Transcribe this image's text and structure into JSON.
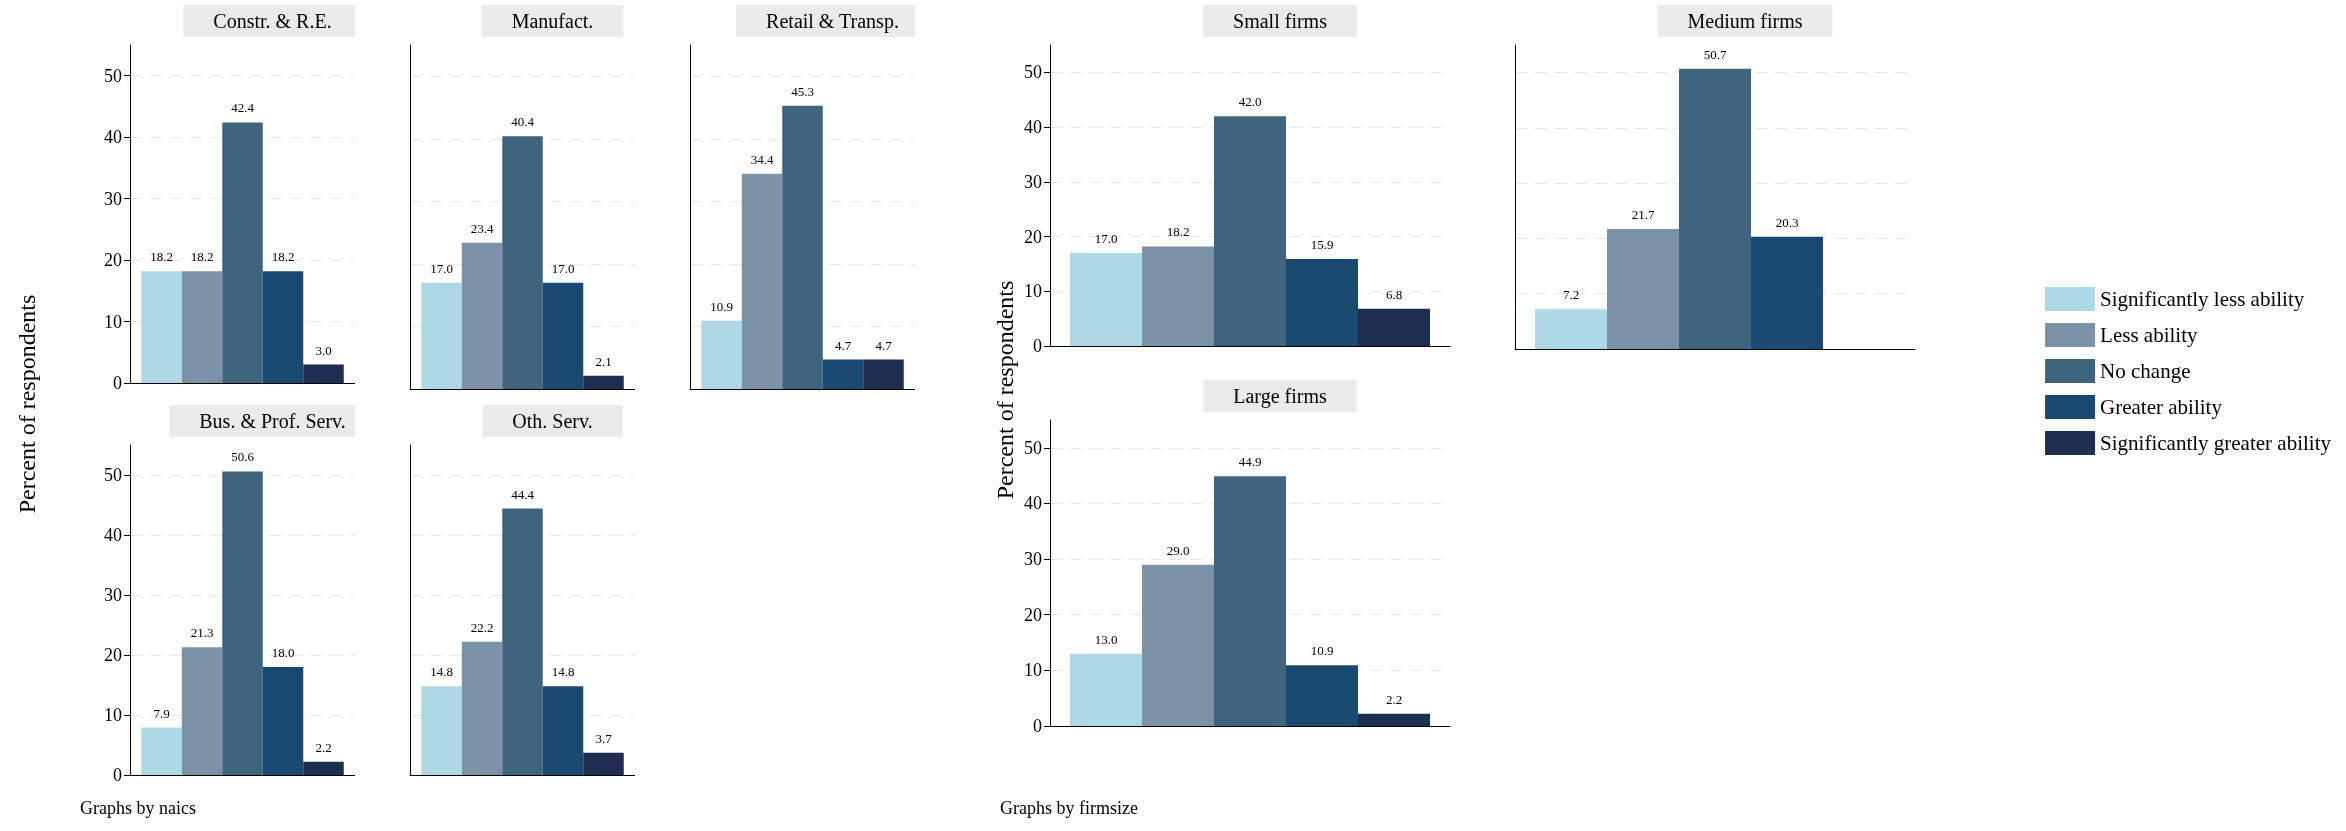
{
  "chart_data": [
    {
      "type": "bar",
      "title": "Constr. & R.E.",
      "ylabel": "Percent of respondents",
      "categories": [
        null
      ],
      "ylim": [
        0,
        55
      ],
      "yticks": [
        0,
        10,
        20,
        30,
        40,
        50
      ],
      "grid": "y",
      "legend": false,
      "series": [
        {
          "color": "#add8e6",
          "values": [
            18.2
          ],
          "value_labels": [
            "18.2"
          ]
        },
        {
          "color": "#7b92a9",
          "values": [
            18.2
          ],
          "value_labels": [
            "18.2"
          ]
        },
        {
          "color": "#3e647e",
          "values": [
            42.4
          ],
          "value_labels": [
            "42.4"
          ]
        },
        {
          "color": "#1b4a70",
          "values": [
            18.2
          ],
          "value_labels": [
            "18.2"
          ]
        },
        {
          "color": "#1f2d50",
          "values": [
            3.0
          ],
          "value_labels": [
            "3.0"
          ]
        }
      ]
    },
    {
      "type": "bar",
      "title": "Manufact.",
      "categories": [
        null
      ],
      "grid": "y",
      "legend": false,
      "tick_labels": false,
      "series": [
        {
          "color": "#add8e6",
          "values": [
            17.0
          ],
          "value_labels": [
            "17.0"
          ]
        },
        {
          "color": "#7b92a9",
          "values": [
            23.4
          ],
          "value_labels": [
            "23.4"
          ]
        },
        {
          "color": "#3e647e",
          "values": [
            40.4
          ],
          "value_labels": [
            "40.4"
          ]
        },
        {
          "color": "#1b4a70",
          "values": [
            17.0
          ],
          "value_labels": [
            "17.0"
          ]
        },
        {
          "color": "#1f2d50",
          "values": [
            2.1
          ],
          "value_labels": [
            "2.1"
          ]
        }
      ]
    },
    {
      "type": "bar",
      "title": "Retail & Transp.",
      "categories": [
        null
      ],
      "grid": "y",
      "legend": false,
      "tick_labels": false,
      "series": [
        {
          "color": "#add8e6",
          "values": [
            10.9
          ],
          "value_labels": [
            "10.9"
          ]
        },
        {
          "color": "#7b92a9",
          "values": [
            34.4
          ],
          "value_labels": [
            "34.4"
          ]
        },
        {
          "color": "#3e647e",
          "values": [
            45.3
          ],
          "value_labels": [
            "45.3"
          ]
        },
        {
          "color": "#1b4a70",
          "values": [
            4.7
          ],
          "value_labels": [
            "4.7"
          ]
        },
        {
          "color": "#1f2d50",
          "values": [
            4.7
          ],
          "value_labels": [
            "4.7"
          ]
        }
      ]
    },
    {
      "type": "bar",
      "title": "Small firms",
      "ylabel": "Percent of respondents",
      "categories": [
        null
      ],
      "ylim": [
        0,
        55
      ],
      "yticks": [
        0,
        10,
        20,
        30,
        40,
        50
      ],
      "grid": "y",
      "legend": false,
      "series": [
        {
          "color": "#add8e6",
          "values": [
            17.0
          ],
          "value_labels": [
            "17.0"
          ]
        },
        {
          "color": "#7b92a9",
          "values": [
            18.2
          ],
          "value_labels": [
            "18.2"
          ]
        },
        {
          "color": "#3e647e",
          "values": [
            42.0
          ],
          "value_labels": [
            "42.0"
          ]
        },
        {
          "color": "#1b4a70",
          "values": [
            15.9
          ],
          "value_labels": [
            "15.9"
          ]
        },
        {
          "color": "#1f2d50",
          "values": [
            6.8
          ],
          "value_labels": [
            "6.8"
          ]
        }
      ]
    },
    {
      "type": "bar",
      "title": "Medium firms",
      "categories": [
        null
      ],
      "grid": "y",
      "legend": "right",
      "tick_labels": false,
      "series": [
        {
          "name": "Significantly less ability",
          "color": "#add8e6",
          "values": [
            7.2
          ],
          "value_labels": [
            "7.2"
          ]
        },
        {
          "name": "Less ability",
          "color": "#7b92a9",
          "values": [
            21.7
          ],
          "value_labels": [
            "21.7"
          ]
        },
        {
          "name": "No change",
          "color": "#3e647e",
          "values": [
            50.7
          ],
          "value_labels": [
            "50.7"
          ]
        },
        {
          "name": "Greater ability",
          "color": "#1b4a70",
          "values": [
            20.3
          ],
          "value_labels": [
            "20.3"
          ]
        },
        {
          "name": "Significantly greater ability",
          "color": "#1f2d50",
          "values": [
            null
          ],
          "value_labels": [
            null
          ]
        }
      ]
    },
    {
      "type": "bar",
      "title": "Bus. & Prof. Serv.",
      "categories": [
        null
      ],
      "ylim": [
        0,
        55
      ],
      "yticks": [
        0,
        10,
        20,
        30,
        40,
        50
      ],
      "grid": "y",
      "legend": false,
      "annotations": [
        "Graphs by naics"
      ],
      "series": [
        {
          "color": "#add8e6",
          "values": [
            7.9
          ],
          "value_labels": [
            "7.9"
          ]
        },
        {
          "color": "#7b92a9",
          "values": [
            21.3
          ],
          "value_labels": [
            "21.3"
          ]
        },
        {
          "color": "#3e647e",
          "values": [
            50.6
          ],
          "value_labels": [
            "50.6"
          ]
        },
        {
          "color": "#1b4a70",
          "values": [
            18.0
          ],
          "value_labels": [
            "18.0"
          ]
        },
        {
          "color": "#1f2d50",
          "values": [
            2.2
          ],
          "value_labels": [
            "2.2"
          ]
        }
      ]
    },
    {
      "type": "bar",
      "title": "Oth. Serv.",
      "categories": [
        null
      ],
      "grid": "y",
      "legend": false,
      "tick_labels": false,
      "series": [
        {
          "color": "#add8e6",
          "values": [
            14.8
          ],
          "value_labels": [
            "14.8"
          ]
        },
        {
          "color": "#7b92a9",
          "values": [
            22.2
          ],
          "value_labels": [
            "22.2"
          ]
        },
        {
          "color": "#3e647e",
          "values": [
            44.4
          ],
          "value_labels": [
            "44.4"
          ]
        },
        {
          "color": "#1b4a70",
          "values": [
            14.8
          ],
          "value_labels": [
            "14.8"
          ]
        },
        {
          "color": "#1f2d50",
          "values": [
            3.7
          ],
          "value_labels": [
            "3.7"
          ]
        }
      ]
    },
    {
      "type": "bar",
      "title": "Large firms",
      "categories": [
        null
      ],
      "ylim": [
        0,
        55
      ],
      "yticks": [
        0,
        10,
        20,
        30,
        40,
        50
      ],
      "grid": "y",
      "legend": false,
      "annotations": [
        "Graphs by firmsize"
      ],
      "series": [
        {
          "color": "#add8e6",
          "values": [
            13.0
          ],
          "value_labels": [
            "13.0"
          ]
        },
        {
          "color": "#7b92a9",
          "values": [
            29.0
          ],
          "value_labels": [
            "29.0"
          ]
        },
        {
          "color": "#3e647e",
          "values": [
            44.9
          ],
          "value_labels": [
            "44.9"
          ]
        },
        {
          "color": "#1b4a70",
          "values": [
            10.9
          ],
          "value_labels": [
            "10.9"
          ]
        },
        {
          "color": "#1f2d50",
          "values": [
            2.2
          ],
          "value_labels": [
            "2.2"
          ]
        }
      ]
    }
  ]
}
